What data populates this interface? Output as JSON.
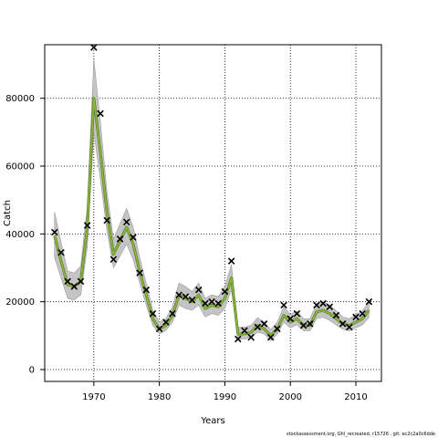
{
  "footer_text": "stockassessment.org, Ghl_recreated, r15726 , git: ec2c2a0c6dde",
  "colors": {
    "band": "#c4c4c4",
    "model_line": "#8db838",
    "model_line_dark": "#5b7e2a",
    "observed": "#000000",
    "grid": "#000000"
  },
  "chart_data": {
    "type": "line",
    "title": "",
    "xlabel": "Years",
    "ylabel": "Catch",
    "xlim": [
      1962.5,
      2013.9
    ],
    "ylim": [
      -3500,
      95800
    ],
    "x_ticks": [
      1970,
      1980,
      1990,
      2000,
      2010
    ],
    "y_ticks": [
      0,
      20000,
      40000,
      60000,
      80000
    ],
    "x_tick_labels": [
      "1970",
      "1980",
      "1990",
      "2000",
      "2010"
    ],
    "y_tick_labels": [
      "0",
      "20000",
      "40000",
      "60000",
      "80000"
    ],
    "grid": true,
    "series": [
      {
        "kind": "model_estimate_with_band",
        "x": [
          1964,
          1965,
          1966,
          1967,
          1968,
          1969,
          1970,
          1971,
          1972,
          1973,
          1974,
          1975,
          1976,
          1977,
          1978,
          1979,
          1980,
          1981,
          1982,
          1983,
          1984,
          1985,
          1986,
          1987,
          1988,
          1989,
          1990,
          1991,
          1992,
          1993,
          1994,
          1995,
          1996,
          1997,
          1998,
          1999,
          2000,
          2001,
          2002,
          2003,
          2004,
          2005,
          2006,
          2007,
          2008,
          2009,
          2010,
          2011,
          2012
        ],
        "values": [
          39500,
          32000,
          25000,
          24500,
          26000,
          42000,
          80000,
          64000,
          46500,
          34000,
          38000,
          42000,
          37000,
          29000,
          22000,
          15000,
          12000,
          13000,
          16000,
          22000,
          21000,
          20000,
          22000,
          18000,
          19000,
          18500,
          21000,
          27000,
          10500,
          10500,
          11000,
          13000,
          12000,
          10000,
          12000,
          16000,
          14000,
          15000,
          13000,
          13000,
          17000,
          17500,
          16500,
          15000,
          13500,
          13000,
          14000,
          15000,
          17500
        ],
        "lower": [
          33000,
          27000,
          21000,
          20500,
          22000,
          36000,
          70000,
          56000,
          41000,
          30000,
          33500,
          37000,
          32500,
          25500,
          19000,
          13000,
          10500,
          11500,
          14000,
          19000,
          18000,
          17500,
          19000,
          15500,
          16500,
          16000,
          18000,
          23500,
          9000,
          9000,
          9500,
          11000,
          10500,
          8500,
          10500,
          14000,
          12300,
          13200,
          11400,
          11400,
          15000,
          15400,
          14500,
          13200,
          11900,
          11400,
          12300,
          13200,
          15400
        ],
        "upper": [
          46500,
          37500,
          29000,
          28500,
          30500,
          48000,
          91500,
          73000,
          52500,
          38500,
          43000,
          47500,
          42000,
          33000,
          25500,
          17500,
          14000,
          15000,
          18500,
          25500,
          24500,
          23000,
          25500,
          21000,
          22000,
          21500,
          24500,
          31000,
          12500,
          12500,
          13000,
          15300,
          14000,
          11800,
          14000,
          18500,
          16200,
          17300,
          15000,
          15000,
          19500,
          20000,
          19000,
          17300,
          15500,
          15000,
          16200,
          17300,
          20000
        ]
      },
      {
        "kind": "observed",
        "marker": "x",
        "x": [
          1964,
          1965,
          1966,
          1967,
          1968,
          1969,
          1970,
          1971,
          1972,
          1973,
          1974,
          1975,
          1976,
          1977,
          1978,
          1979,
          1980,
          1981,
          1982,
          1983,
          1984,
          1985,
          1986,
          1987,
          1988,
          1989,
          1990,
          1991,
          1992,
          1993,
          1994,
          1995,
          1996,
          1997,
          1998,
          1999,
          2000,
          2001,
          2002,
          2003,
          2004,
          2005,
          2006,
          2007,
          2008,
          2009,
          2010,
          2011,
          2012
        ],
        "values": [
          40500,
          34500,
          26000,
          24500,
          26000,
          42500,
          95000,
          75500,
          44000,
          32500,
          38500,
          43500,
          39000,
          28500,
          23500,
          16500,
          12000,
          14000,
          16500,
          22000,
          21500,
          20500,
          23500,
          19500,
          20000,
          19500,
          23000,
          32000,
          9000,
          11500,
          9500,
          12500,
          13500,
          9500,
          12000,
          19000,
          15000,
          16500,
          13000,
          13500,
          19000,
          19500,
          18500,
          16000,
          13500,
          12500,
          15500,
          16500,
          20000
        ]
      }
    ]
  }
}
